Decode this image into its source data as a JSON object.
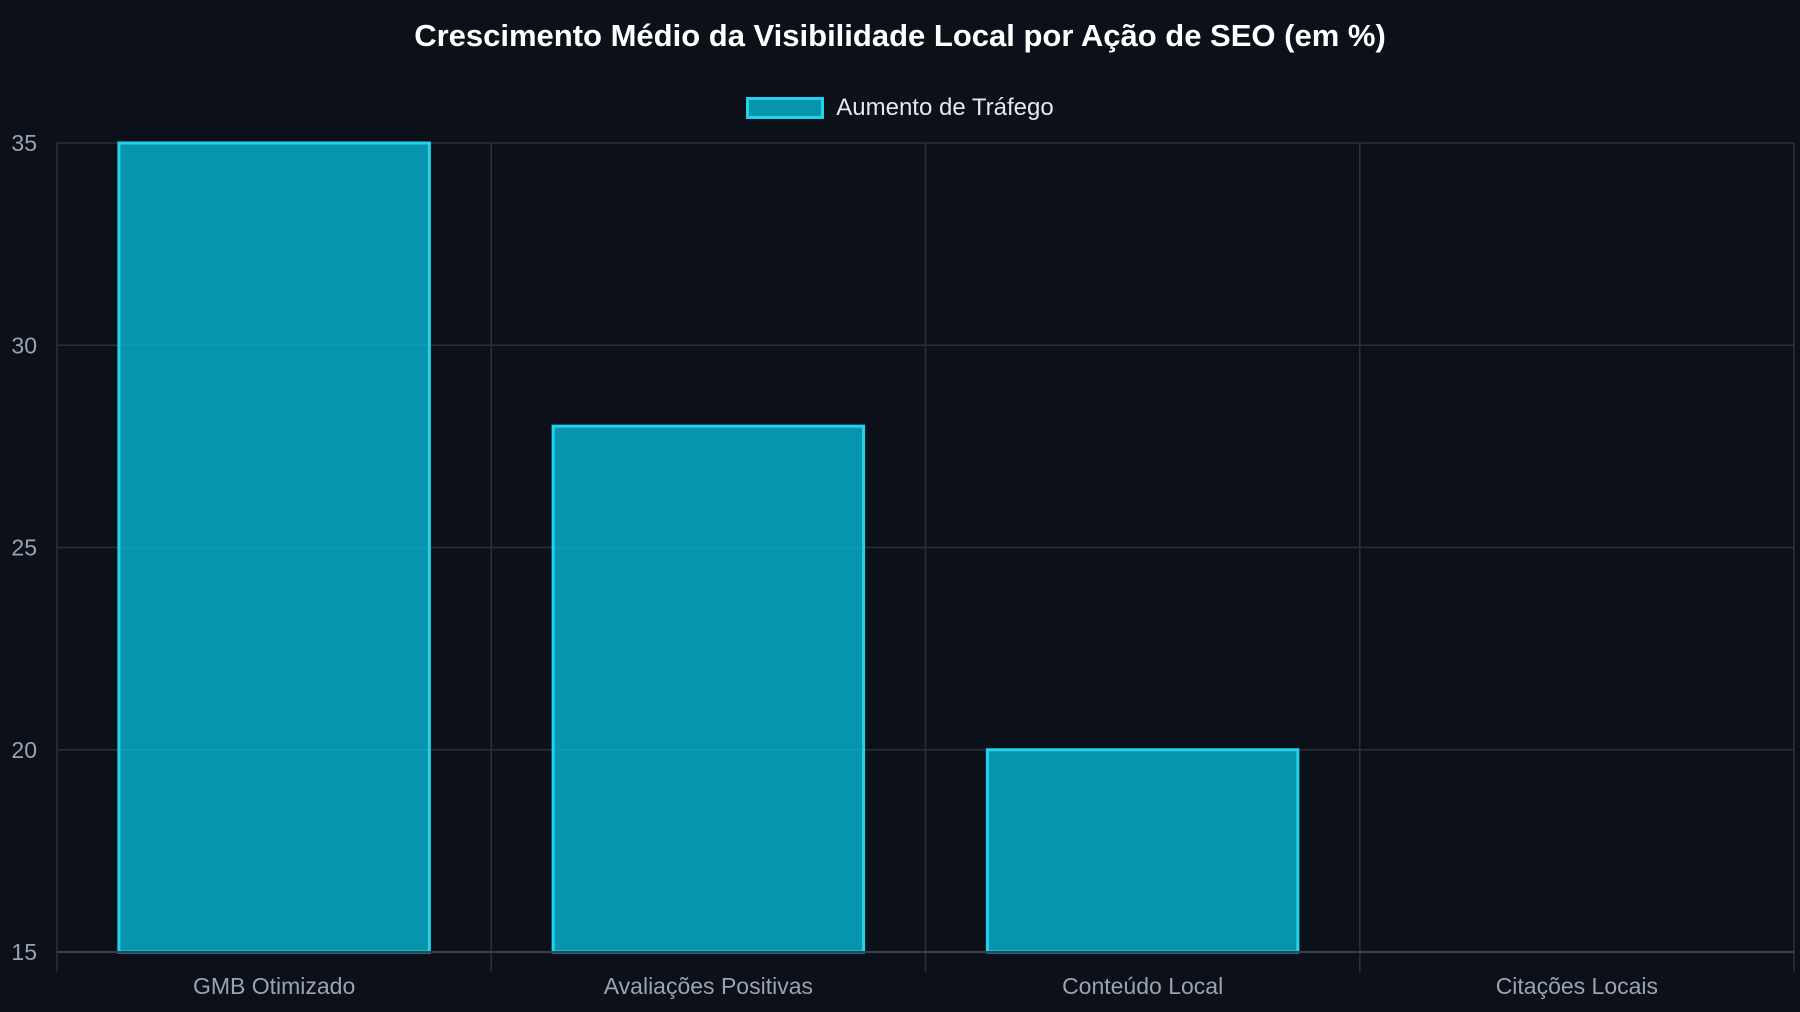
{
  "chart_data": {
    "type": "bar",
    "title": "Crescimento Médio da Visibilidade Local por Ação de SEO (em %)",
    "categories": [
      "GMB Otimizado",
      "Avaliações Positivas",
      "Conteúdo Local",
      "Citações Locais"
    ],
    "series": [
      {
        "name": "Aumento de Tráfego",
        "values": [
          35,
          28,
          20,
          15
        ]
      }
    ],
    "ylim": [
      15,
      35
    ],
    "yticks": [
      "15",
      "20",
      "25",
      "30",
      "35"
    ],
    "grid": true,
    "legend_position": "top-center",
    "colors": {
      "background": "#0c1018",
      "bar_fill": "rgba(6,182,212,0.8)",
      "bar_border": "#22d3ee",
      "grid": "#2a2f3b",
      "tick_text": "#9aa3b5",
      "title": "#ffffff",
      "legend_text": "#e5e7eb"
    }
  }
}
